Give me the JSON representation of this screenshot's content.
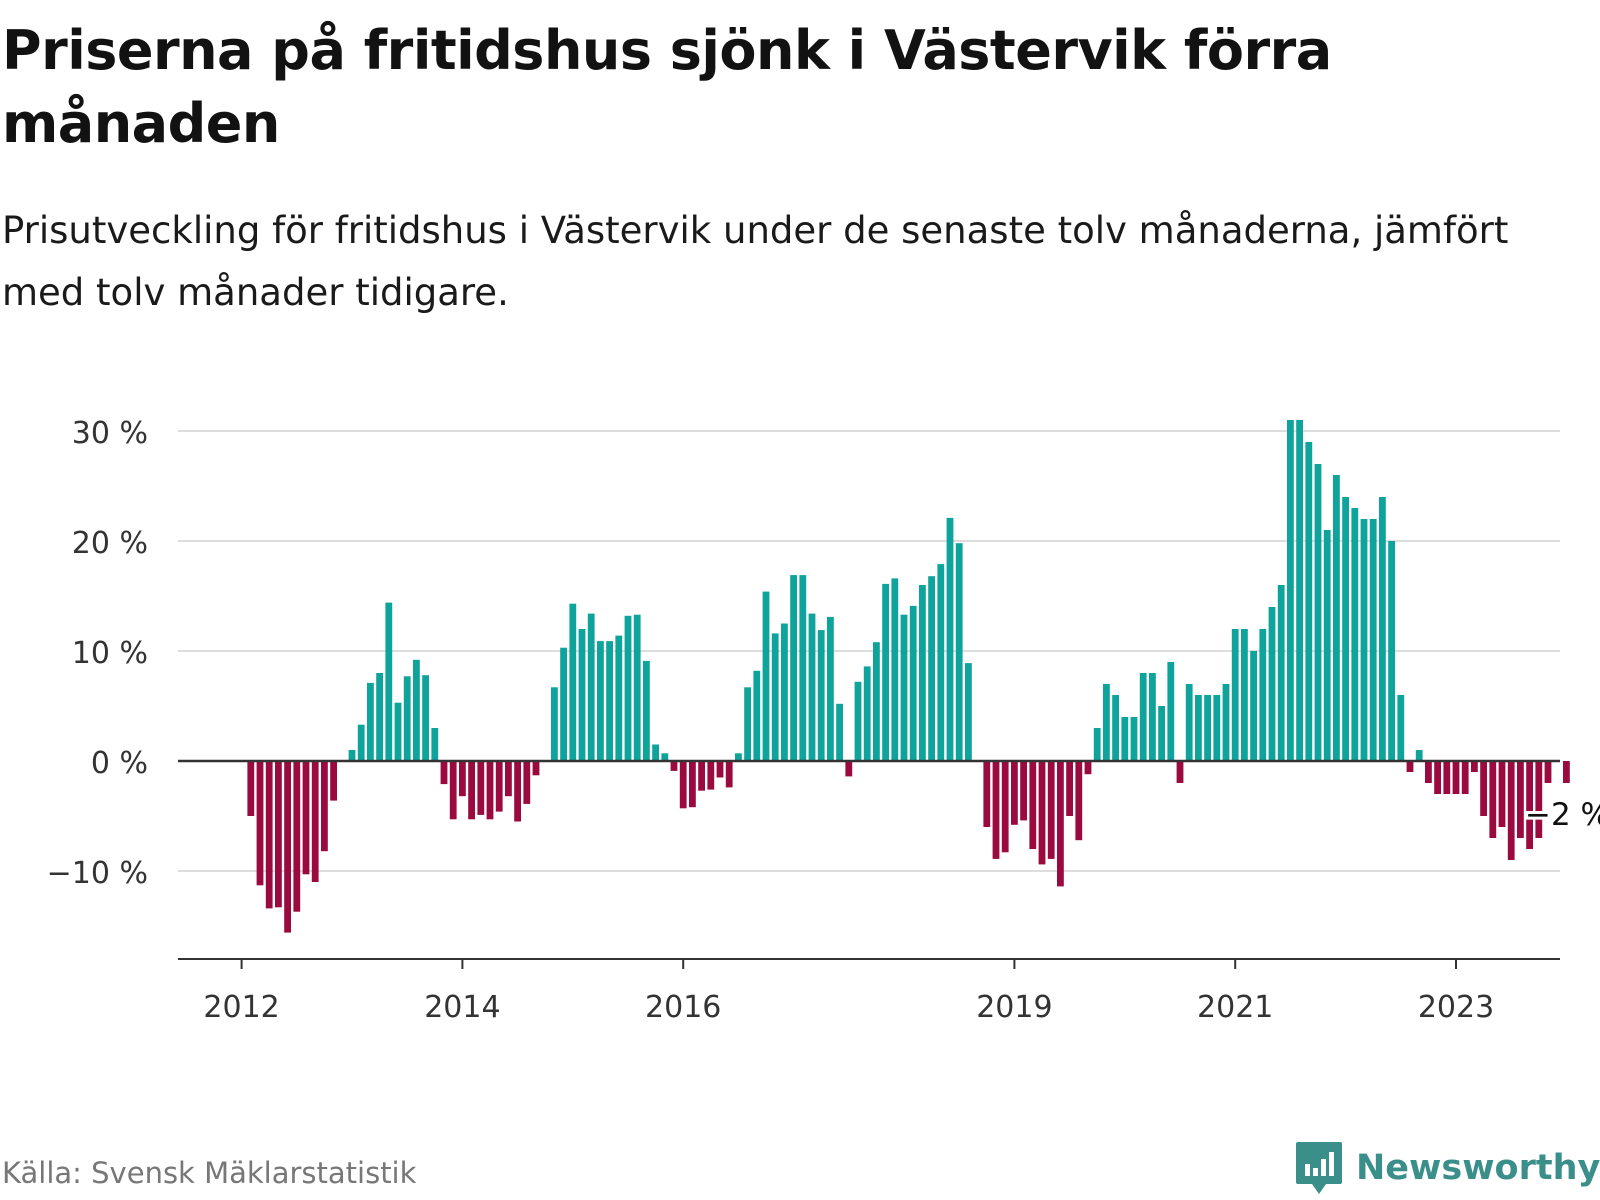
{
  "title": "Priserna på fritidshus sjönk i Västervik förra månaden",
  "subtitle": "Prisutveckling för fritidshus i Västervik under de senaste tolv månaderna, jämfört med tolv månader tidigare.",
  "source": "Källa: Svensk Mäklarstatistik",
  "brand": {
    "name": "Newsworthy",
    "logo_icon": "bar-chart-speech-bubble-icon",
    "color": "#3a8f8a"
  },
  "colors": {
    "positive": "#0ea39b",
    "negative": "#9b0a3f",
    "grid": "#dddddd",
    "axis": "#333333"
  },
  "chart_data": {
    "type": "bar",
    "title": "Priserna på fritidshus sjönk i Västervik förra månaden",
    "xlabel": "",
    "ylabel": "",
    "ylim": [
      -17.5,
      31
    ],
    "yticks": [
      -10,
      0,
      10,
      20,
      30
    ],
    "ytick_labels": [
      "−10 %",
      "0 %",
      "10 %",
      "20 %",
      "30 %"
    ],
    "grid": true,
    "start": "2011-07",
    "xticks": [
      {
        "label": "2012",
        "index": 6
      },
      {
        "label": "2014",
        "index": 30
      },
      {
        "label": "2016",
        "index": 54
      },
      {
        "label": "2019",
        "index": 90
      },
      {
        "label": "2021",
        "index": 114
      },
      {
        "label": "2023",
        "index": 138
      }
    ],
    "values": [
      null,
      null,
      null,
      null,
      null,
      null,
      null,
      -5,
      -11.3,
      -13.4,
      -13.3,
      -15.6,
      -13.7,
      -10.3,
      -11,
      -8.2,
      -3.6,
      null,
      1,
      3.3,
      7.1,
      8,
      14.4,
      5.3,
      7.7,
      9.2,
      7.8,
      3,
      -2.1,
      -5.3,
      -3.2,
      -5.3,
      -4.9,
      -5.3,
      -4.6,
      -3.2,
      -5.5,
      -3.9,
      -1.3,
      null,
      6.7,
      10.3,
      14.3,
      12,
      13.4,
      10.9,
      10.9,
      11.4,
      13.2,
      13.3,
      9.1,
      1.5,
      0.7,
      -0.9,
      -4.3,
      -4.2,
      -2.7,
      -2.6,
      -1.5,
      -2.4,
      0.7,
      6.7,
      8.2,
      15.4,
      11.6,
      12.5,
      16.9,
      16.9,
      13.4,
      11.9,
      13.1,
      5.2,
      -1.4,
      7.2,
      8.6,
      10.8,
      16.1,
      16.6,
      13.3,
      14.1,
      16,
      16.8,
      17.9,
      22.1,
      19.8,
      8.9,
      null,
      -6,
      -8.9,
      -8.3,
      -5.8,
      -5.4,
      -8,
      -9.4,
      -8.9,
      -11.4,
      -5,
      -7.2,
      -1.2,
      3,
      7,
      6,
      4,
      4,
      8,
      8,
      5,
      9,
      -2,
      7,
      6,
      6,
      6,
      7,
      12,
      12,
      10,
      12,
      14,
      16,
      31,
      31,
      29,
      27,
      21,
      26,
      24,
      23,
      22,
      22,
      24,
      20,
      6,
      -1,
      1,
      -2,
      -3,
      -3,
      -3,
      -3,
      -1,
      -5,
      -7,
      -6,
      -9,
      -7,
      -8,
      -7,
      -2,
      null,
      -2
    ],
    "last_value_label": "−2 %"
  }
}
